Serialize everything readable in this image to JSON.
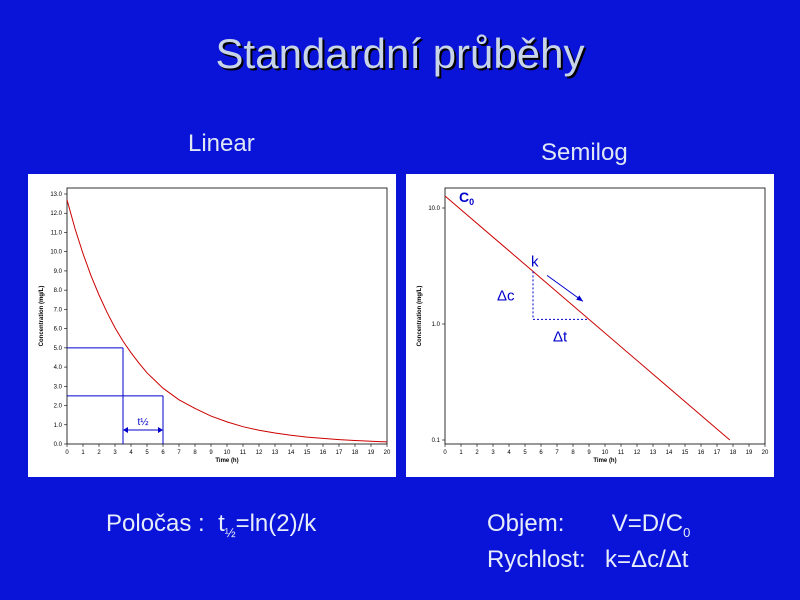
{
  "slide": {
    "title": "Standardní průběhy"
  },
  "labels": {
    "linear": "Linear",
    "semilog": "Semilog"
  },
  "formulas": {
    "halflife_label": "Poločas :",
    "halflife_t": "t",
    "halflife_sub": "½",
    "halflife_rest": "=ln(2)/k",
    "volume_label": "Objem:",
    "volume_formula": "V=D/C",
    "volume_sub": "0",
    "rate_label": "Rychlost:",
    "rate_formula": "k=Δc/Δt"
  },
  "colors": {
    "background": "#0a14d8",
    "curve": "#cc0000",
    "guide_lines": "#0000cc",
    "annotation": "#0000cc"
  },
  "chart_data": [
    {
      "type": "line",
      "title": "",
      "xlabel": "Time (h)",
      "ylabel": "Concentration (mg/L)",
      "xlim": [
        0,
        20
      ],
      "ylim": [
        0,
        13
      ],
      "xticks": [
        "0",
        "1",
        "2",
        "3",
        "4",
        "5",
        "6",
        "7",
        "8",
        "9",
        "10",
        "11",
        "12",
        "13",
        "14",
        "15",
        "16",
        "17",
        "18",
        "19",
        "20"
      ],
      "yticks": [
        "0.0",
        "1.0",
        "2.0",
        "3.0",
        "4.0",
        "5.0",
        "6.0",
        "7.0",
        "8.0",
        "9.0",
        "10.0",
        "11.0",
        "12.0",
        "13.0"
      ],
      "series": [
        {
          "x": [
            0,
            0.5,
            1,
            1.5,
            2,
            2.5,
            3,
            3.5,
            4,
            4.5,
            5,
            5.5,
            6,
            7,
            8,
            9,
            10,
            11,
            12,
            13,
            14,
            15,
            16,
            17,
            18,
            19,
            20
          ],
          "y": [
            12.7,
            11.2,
            9.9,
            8.75,
            7.75,
            6.85,
            6.05,
            5.35,
            4.75,
            4.2,
            3.7,
            3.3,
            2.9,
            2.3,
            1.85,
            1.45,
            1.15,
            0.9,
            0.72,
            0.57,
            0.45,
            0.36,
            0.29,
            0.23,
            0.18,
            0.14,
            0.11
          ]
        }
      ],
      "annotations": {
        "halflife_label": "t½",
        "c1": 5.0,
        "t1": 3.5,
        "c2": 2.5,
        "t2": 6.0
      }
    },
    {
      "type": "line",
      "title": "",
      "xlabel": "Time (h)",
      "ylabel": "Concentration (mg/L)",
      "xlim": [
        0,
        20
      ],
      "ylim": [
        0.1,
        10
      ],
      "yscale": "log",
      "xticks": [
        "0",
        "1",
        "2",
        "3",
        "4",
        "5",
        "6",
        "7",
        "8",
        "9",
        "10",
        "11",
        "12",
        "13",
        "14",
        "15",
        "16",
        "17",
        "18",
        "19",
        "20"
      ],
      "yticks": [
        "0.1",
        "1.0",
        "10.0"
      ],
      "series": [
        {
          "x": [
            0,
            17.8
          ],
          "y": [
            12.7,
            0.1
          ]
        }
      ],
      "annotations": {
        "c0_label": "C",
        "c0_sub": "0",
        "k_label": "k",
        "dc_label": "Δc",
        "dt_label": "Δt",
        "triangle_t1": 5.5,
        "triangle_t2": 9.0
      }
    }
  ]
}
